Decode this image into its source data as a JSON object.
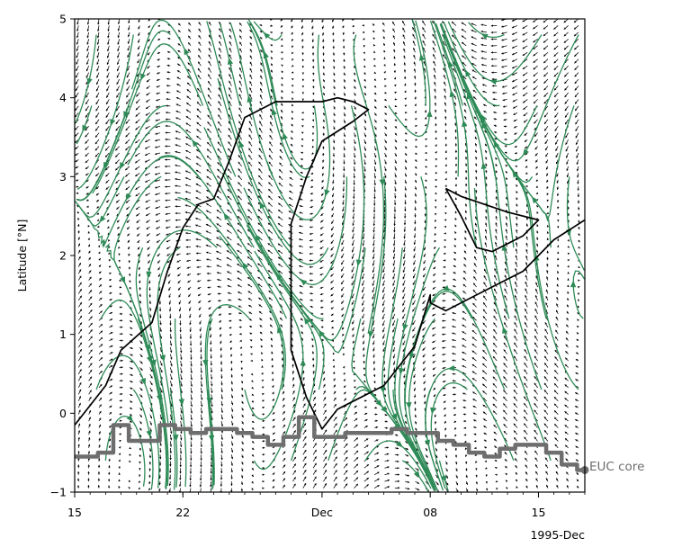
{
  "chart_data": {
    "type": "streamplot",
    "title": "",
    "xlabel": "",
    "x_offset_label": "1995-Dec",
    "ylabel": "Latitude [°N]",
    "xlim": [
      "1995-11-15",
      "1995-12-18"
    ],
    "ylim": [
      -1,
      5
    ],
    "x_ticks": [
      {
        "date": "1995-11-15",
        "label": "15"
      },
      {
        "date": "1995-11-22",
        "label": "22"
      },
      {
        "date": "1995-12-01",
        "label": "Dec"
      },
      {
        "date": "1995-12-08",
        "label": "08"
      },
      {
        "date": "1995-12-15",
        "label": "15"
      }
    ],
    "y_ticks": [
      -1,
      0,
      1,
      2,
      3,
      4,
      5
    ],
    "colors": {
      "stream": "#2e8b57",
      "contour": "#000000",
      "euc": "#6e6e6e",
      "quiver": "#000000"
    },
    "contour_line": [
      [
        "1995-11-15",
        -0.15
      ],
      [
        "1995-11-17",
        0.35
      ],
      [
        "1995-11-18",
        0.8
      ],
      [
        "1995-11-20",
        1.15
      ],
      [
        "1995-11-21",
        1.8
      ],
      [
        "1995-11-22",
        2.35
      ],
      [
        "1995-11-23",
        2.65
      ],
      [
        "1995-11-24",
        2.72
      ],
      [
        "1995-11-25",
        3.2
      ],
      [
        "1995-11-26",
        3.75
      ],
      [
        "1995-11-28",
        3.95
      ],
      [
        "1995-12-01",
        3.95
      ],
      [
        "1995-12-02",
        4.0
      ],
      [
        "1995-12-03",
        3.95
      ],
      [
        "1995-12-04",
        3.85
      ],
      [
        "1995-12-03",
        3.7
      ],
      [
        "1995-12-01",
        3.45
      ],
      [
        "1995-11-30",
        3.0
      ],
      [
        "1995-11-29",
        2.4
      ],
      [
        "1995-11-29",
        1.7
      ],
      [
        "1995-11-29",
        0.8
      ],
      [
        "1995-11-30",
        0.2
      ],
      [
        "1995-12-01",
        -0.2
      ],
      [
        "1995-12-02",
        0.05
      ],
      [
        "1995-12-05",
        0.35
      ],
      [
        "1995-12-07",
        0.85
      ],
      [
        "1995-12-08",
        1.5
      ],
      [
        "1995-12-08",
        1.4
      ],
      [
        "1995-12-09",
        1.3
      ],
      [
        "1995-12-11",
        1.5
      ],
      [
        "1995-12-14",
        1.8
      ],
      [
        "1995-12-16",
        2.2
      ],
      [
        "1995-12-18",
        2.45
      ]
    ],
    "contour_island": [
      [
        "1995-12-09",
        2.85
      ],
      [
        "1995-12-10",
        2.5
      ],
      [
        "1995-12-11",
        2.1
      ],
      [
        "1995-12-12",
        2.05
      ],
      [
        "1995-12-14",
        2.25
      ],
      [
        "1995-12-15",
        2.45
      ],
      [
        "1995-12-13",
        2.55
      ],
      [
        "1995-12-10",
        2.75
      ],
      [
        "1995-12-09",
        2.85
      ]
    ],
    "series": [
      {
        "name": "EUC core",
        "x": [
          "1995-11-15",
          "1995-11-16",
          "1995-11-17",
          "1995-11-18",
          "1995-11-19",
          "1995-11-20",
          "1995-11-21",
          "1995-11-22",
          "1995-11-23",
          "1995-11-24",
          "1995-11-25",
          "1995-11-26",
          "1995-11-27",
          "1995-11-28",
          "1995-11-29",
          "1995-11-30",
          "1995-12-01",
          "1995-12-02",
          "1995-12-03",
          "1995-12-04",
          "1995-12-05",
          "1995-12-06",
          "1995-12-07",
          "1995-12-08",
          "1995-12-09",
          "1995-12-10",
          "1995-12-11",
          "1995-12-12",
          "1995-12-13",
          "1995-12-14",
          "1995-12-15",
          "1995-12-16",
          "1995-12-17",
          "1995-12-18"
        ],
        "y": [
          -0.55,
          -0.55,
          -0.5,
          -0.15,
          -0.35,
          -0.35,
          -0.15,
          -0.2,
          -0.25,
          -0.2,
          -0.2,
          -0.25,
          -0.3,
          -0.4,
          -0.3,
          -0.05,
          -0.3,
          -0.3,
          -0.25,
          -0.25,
          -0.25,
          -0.2,
          -0.25,
          -0.25,
          -0.35,
          -0.4,
          -0.5,
          -0.55,
          -0.45,
          -0.4,
          -0.4,
          -0.5,
          -0.65,
          -0.72
        ]
      }
    ]
  }
}
